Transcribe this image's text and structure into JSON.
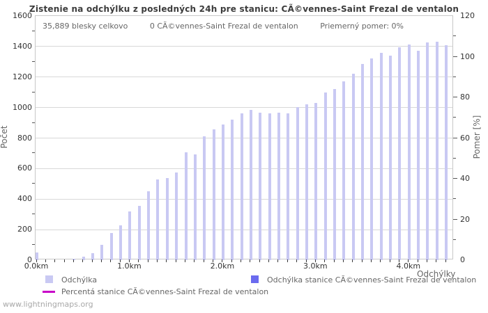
{
  "title": "Zistenie na odchýlku z posledných 24h pre stanicu: CÃ©vennes-Saint Frezal de ventalon",
  "info_bar": {
    "total_flashes": "35,889 blesky celkovo",
    "station_count": "0 CÃ©vennes-Saint Frezal de ventalon",
    "average_ratio": "Priemerný pomer: 0%"
  },
  "axes": {
    "left_label": "Počet",
    "right_label": "Pomer [%]",
    "x_label": "Odchýlky",
    "x_tick_labels": [
      "0.0km",
      "1.0km",
      "2.0km",
      "3.0km",
      "4.0km"
    ]
  },
  "legend": {
    "item1": "Odchýlka",
    "item2": "Odchýlka stanice CÃ©vennes-Saint Frezal de ventalon",
    "item3": "Percentá stanice CÃ©vennes-Saint Frezal de ventalon"
  },
  "footer": "www.lightningmaps.org",
  "colors": {
    "bar": "#c9c9f3",
    "station_bar": "#6b6bef",
    "percent_line": "#c800c8",
    "grid": "#d8d8d8",
    "plot_border": "#c8c8c8",
    "text_dark": "#333333",
    "text_gray": "#666666"
  },
  "chart_data": {
    "type": "bar",
    "title": "Zistenie na odchýlku z posledných 24h pre stanicu: CÃ©vennes-Saint Frezal de ventalon",
    "xlabel": "Odchýlky",
    "ylabel_left": "Počet",
    "ylabel_right": "Pomer [%]",
    "ylim_left": [
      0,
      1600
    ],
    "ylim_right": [
      0,
      120
    ],
    "y_ticks_left": [
      0,
      200,
      400,
      600,
      800,
      1000,
      1200,
      1400,
      1600
    ],
    "y_ticks_right": [
      0,
      20,
      40,
      60,
      80,
      100,
      120
    ],
    "grid": true,
    "legend_position": "bottom",
    "x_km": [
      0.0,
      0.1,
      0.2,
      0.3,
      0.4,
      0.5,
      0.6,
      0.7,
      0.8,
      0.9,
      1.0,
      1.1,
      1.2,
      1.3,
      1.4,
      1.5,
      1.6,
      1.7,
      1.8,
      1.9,
      2.0,
      2.1,
      2.2,
      2.3,
      2.4,
      2.5,
      2.6,
      2.7,
      2.8,
      2.9,
      3.0,
      3.1,
      3.2,
      3.3,
      3.4,
      3.5,
      3.6,
      3.7,
      3.8,
      3.9,
      4.0,
      4.1,
      4.2,
      4.3,
      4.4
    ],
    "series": [
      {
        "name": "Odchýlka",
        "values": [
          50,
          0,
          0,
          0,
          10,
          25,
          45,
          100,
          180,
          230,
          320,
          355,
          450,
          530,
          540,
          575,
          705,
          695,
          810,
          855,
          890,
          920,
          960,
          985,
          965,
          960,
          965,
          960,
          1005,
          1020,
          1030,
          1100,
          1120,
          1170,
          1220,
          1285,
          1320,
          1360,
          1340,
          1395,
          1415,
          1370,
          1425,
          1430,
          1410
        ]
      },
      {
        "name": "Odchýlka stanice CÃ©vennes-Saint Frezal de ventalon",
        "values": [
          0,
          0,
          0,
          0,
          0,
          0,
          0,
          0,
          0,
          0,
          0,
          0,
          0,
          0,
          0,
          0,
          0,
          0,
          0,
          0,
          0,
          0,
          0,
          0,
          0,
          0,
          0,
          0,
          0,
          0,
          0,
          0,
          0,
          0,
          0,
          0,
          0,
          0,
          0,
          0,
          0,
          0,
          0,
          0,
          0
        ]
      },
      {
        "name": "Percentá stanice CÃ©vennes-Saint Frezal de ventalon",
        "values_percent": [
          0,
          0,
          0,
          0,
          0,
          0,
          0,
          0,
          0,
          0,
          0,
          0,
          0,
          0,
          0,
          0,
          0,
          0,
          0,
          0,
          0,
          0,
          0,
          0,
          0,
          0,
          0,
          0,
          0,
          0,
          0,
          0,
          0,
          0,
          0,
          0,
          0,
          0,
          0,
          0,
          0,
          0,
          0,
          0,
          0
        ]
      }
    ]
  }
}
